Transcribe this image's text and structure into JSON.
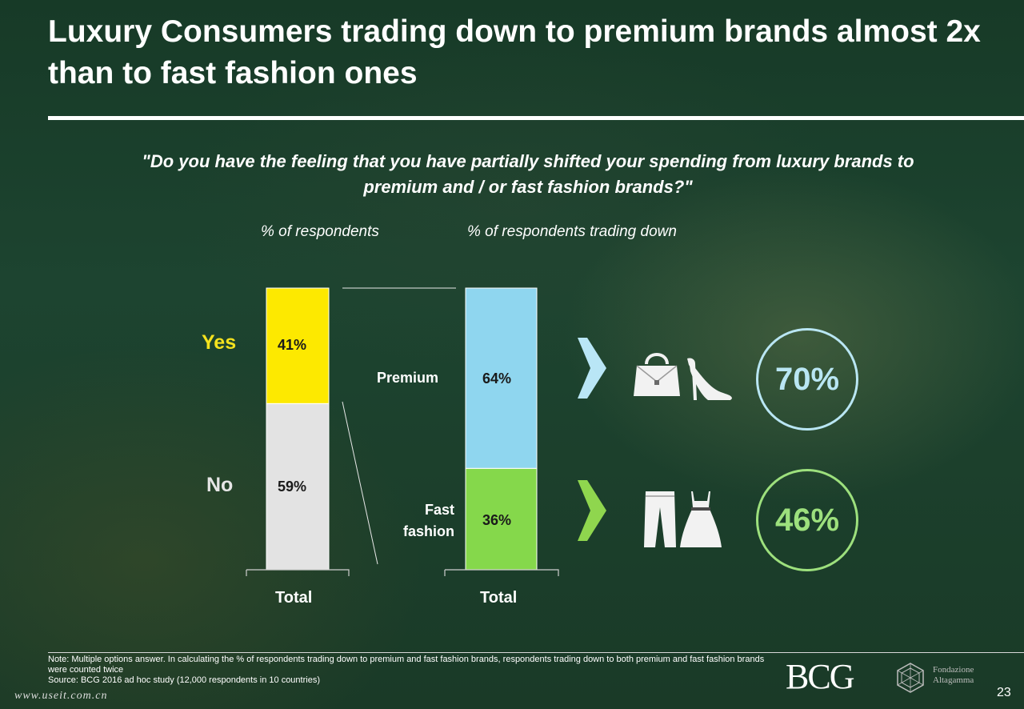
{
  "title": "Luxury Consumers trading down to premium brands almost 2x than to fast fashion ones",
  "question": "\"Do you have the feeling that you have partially shifted your spending from luxury brands to premium and / or fast fashion brands?\"",
  "colors": {
    "yes": "#fde900",
    "no": "#e3e3e3",
    "premium": "#8fd6ef",
    "fast_fashion": "#85d84b"
  },
  "chart_data": [
    {
      "type": "bar",
      "stacked": true,
      "subtitle": "% of respondents",
      "categories": [
        "Total"
      ],
      "series": [
        {
          "name": "No",
          "values": [
            59
          ]
        },
        {
          "name": "Yes",
          "values": [
            41
          ]
        }
      ],
      "data_labels": [
        "59%",
        "41%"
      ],
      "ylim": [
        0,
        100
      ]
    },
    {
      "type": "bar",
      "stacked": true,
      "subtitle": "% of respondents trading down",
      "categories": [
        "Total"
      ],
      "series": [
        {
          "name": "Fast fashion",
          "values": [
            36
          ]
        },
        {
          "name": "Premium",
          "values": [
            64
          ]
        }
      ],
      "data_labels": [
        "36%",
        "64%"
      ],
      "ylim": [
        0,
        100
      ]
    }
  ],
  "callouts": [
    {
      "segment": "Premium",
      "value": "70%",
      "icons": [
        "handbag-icon",
        "high-heel-icon"
      ]
    },
    {
      "segment": "Fast fashion",
      "value": "46%",
      "icons": [
        "jeans-icon",
        "dress-icon"
      ]
    }
  ],
  "footer": {
    "note": "Note: Multiple options answer. In calculating the % of respondents trading down to premium and fast fashion brands, respondents trading down to both premium and fast fashion brands were counted twice",
    "source": "Source: BCG 2016 ad hoc study (12,000 respondents in 10 countries)",
    "logo": "BCG",
    "partner_line1": "Fondazione",
    "partner_line2": "Altagamma",
    "page": "23",
    "watermark": "www.useit.com.cn"
  }
}
